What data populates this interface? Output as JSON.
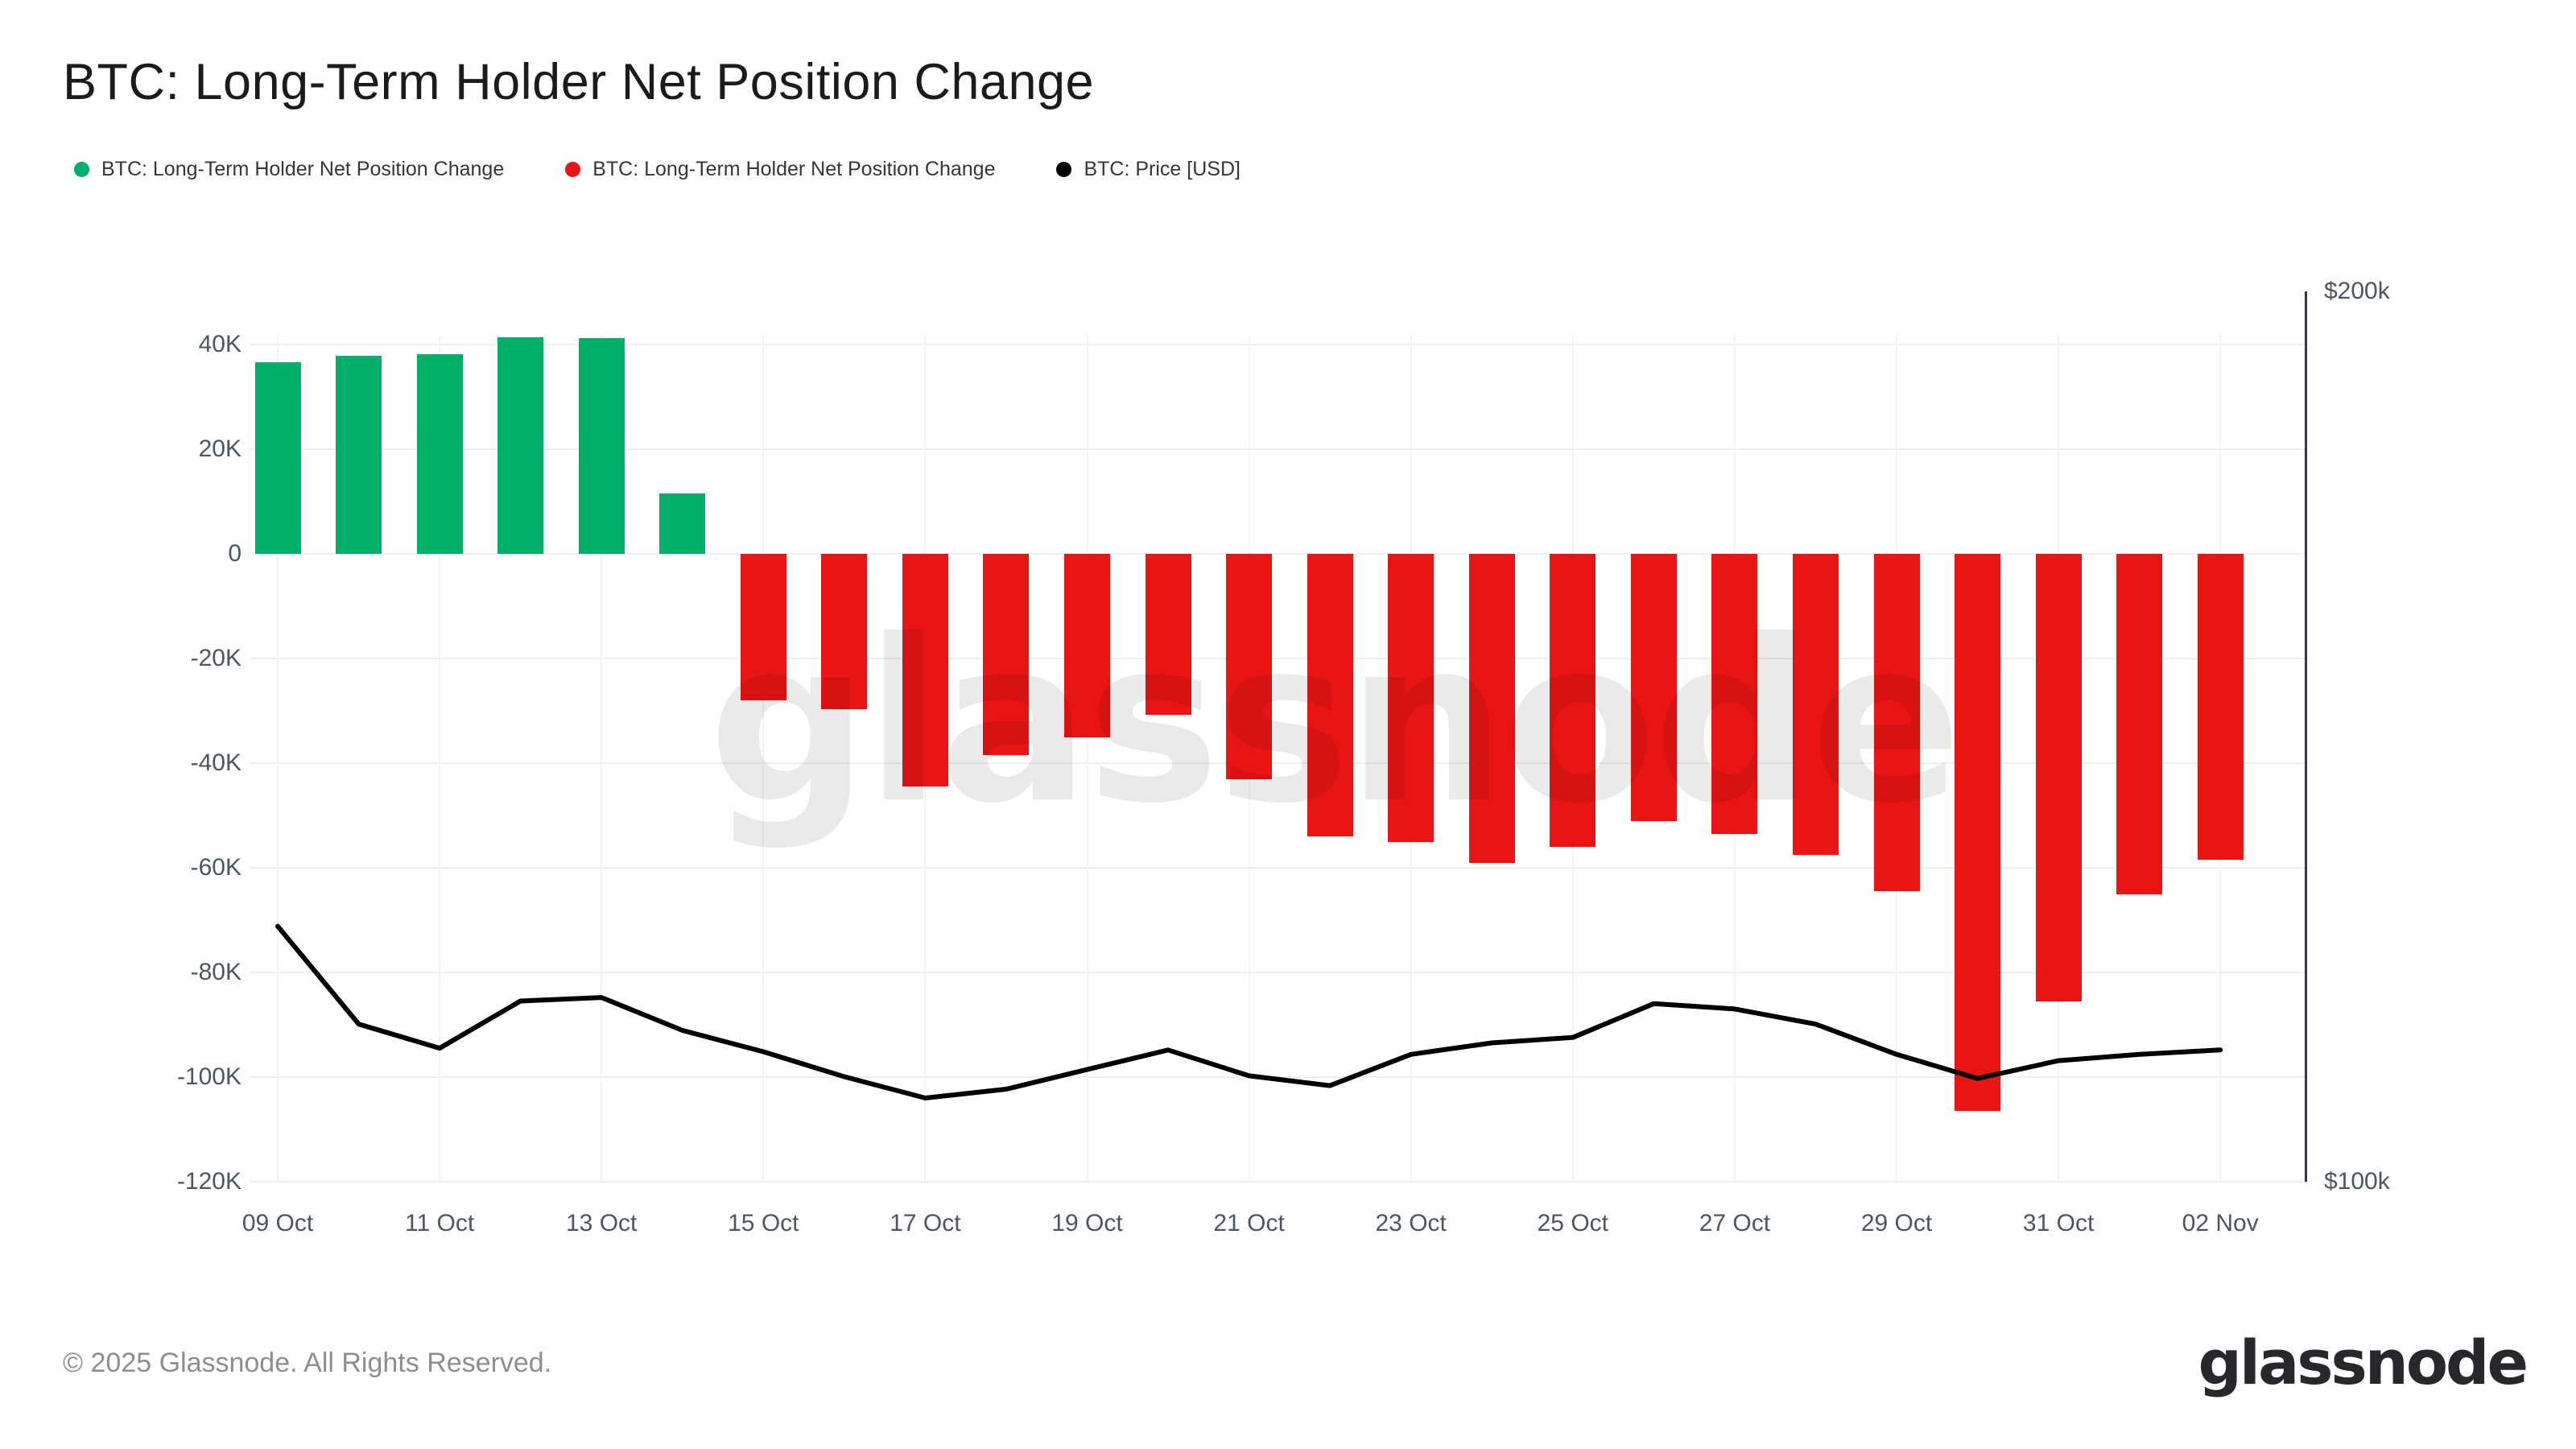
{
  "title": "BTC: Long-Term Holder Net Position Change",
  "legend": {
    "items": [
      {
        "label": "BTC: Long-Term Holder Net Position Change",
        "color": "#00af69"
      },
      {
        "label": "BTC: Long-Term Holder Net Position Change",
        "color": "#e91414"
      },
      {
        "label": "BTC: Price [USD]",
        "color": "#000000"
      }
    ]
  },
  "watermark": "glassnode",
  "footer": {
    "copyright": "© 2025 Glassnode. All Rights Reserved.",
    "logo": "glassnode"
  },
  "chart_data": {
    "type": "combo-bar-line",
    "title": "BTC: Long-Term Holder Net Position Change",
    "grid": true,
    "legend_position": "top-left",
    "categories": [
      "09 Oct",
      "10 Oct",
      "11 Oct",
      "12 Oct",
      "13 Oct",
      "14 Oct",
      "15 Oct",
      "16 Oct",
      "17 Oct",
      "18 Oct",
      "19 Oct",
      "20 Oct",
      "21 Oct",
      "22 Oct",
      "23 Oct",
      "24 Oct",
      "25 Oct",
      "26 Oct",
      "27 Oct",
      "28 Oct",
      "29 Oct",
      "30 Oct",
      "31 Oct",
      "01 Nov",
      "02 Nov"
    ],
    "series": [
      {
        "name": "BTC: Long-Term Holder Net Position Change",
        "type": "bar",
        "axis": "left",
        "positive_color": "#00af69",
        "negative_color": "#e91414",
        "values": [
          36600,
          37800,
          38200,
          41400,
          41200,
          11500,
          -28000,
          -29700,
          -44400,
          -38500,
          -35000,
          -30700,
          -43000,
          -54000,
          -55000,
          -59000,
          -56000,
          -51000,
          -53500,
          -57500,
          -64500,
          -106500,
          -85500,
          -65000,
          -58500
        ]
      },
      {
        "name": "BTC: Price [USD]",
        "type": "line",
        "axis": "right",
        "color": "#000000",
        "values_usd": [
          128700,
          117700,
          115000,
          120300,
          120700,
          117000,
          114600,
          111800,
          109400,
          110400,
          112600,
          114800,
          111900,
          110800,
          114300,
          115600,
          116200,
          120000,
          119400,
          117700,
          114300,
          111600,
          113600,
          114300,
          114800
        ]
      }
    ],
    "left_axis": {
      "ylim": [
        -120000,
        40000
      ],
      "ticks": [
        {
          "value": 40000,
          "label": "40K"
        },
        {
          "value": 20000,
          "label": "20K"
        },
        {
          "value": 0,
          "label": "0"
        },
        {
          "value": -20000,
          "label": "-20K"
        },
        {
          "value": -40000,
          "label": "-40K"
        },
        {
          "value": -60000,
          "label": "-60K"
        },
        {
          "value": -80000,
          "label": "-80K"
        },
        {
          "value": -100000,
          "label": "-100K"
        },
        {
          "value": -120000,
          "label": "-120K"
        }
      ]
    },
    "right_axis": {
      "min_usd": 100000,
      "max_usd": 200000,
      "ticks": [
        {
          "usd": 200000,
          "label": "$200k"
        },
        {
          "usd": 100000,
          "label": "$100k"
        }
      ]
    },
    "x_ticks": [
      {
        "index": 0,
        "label": "09 Oct"
      },
      {
        "index": 2,
        "label": "11 Oct"
      },
      {
        "index": 4,
        "label": "13 Oct"
      },
      {
        "index": 6,
        "label": "15 Oct"
      },
      {
        "index": 8,
        "label": "17 Oct"
      },
      {
        "index": 10,
        "label": "19 Oct"
      },
      {
        "index": 12,
        "label": "21 Oct"
      },
      {
        "index": 14,
        "label": "23 Oct"
      },
      {
        "index": 16,
        "label": "25 Oct"
      },
      {
        "index": 18,
        "label": "27 Oct"
      },
      {
        "index": 20,
        "label": "29 Oct"
      },
      {
        "index": 22,
        "label": "31 Oct"
      },
      {
        "index": 24,
        "label": "02 Nov"
      }
    ]
  }
}
